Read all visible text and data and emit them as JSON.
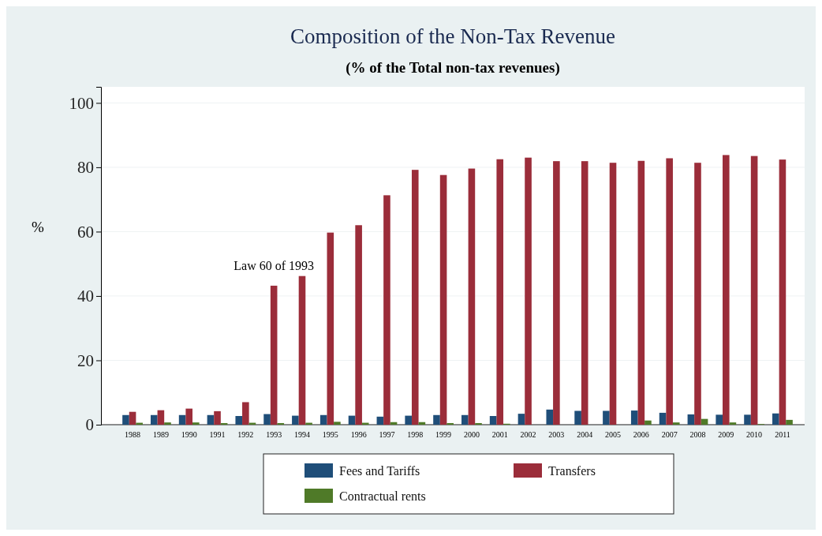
{
  "chart_data": {
    "type": "bar",
    "title": "Composition of the Non-Tax Revenue",
    "subtitle": "(% of the Total non-tax revenues)",
    "ylabel": "%",
    "categories": [
      "1988",
      "1989",
      "1990",
      "1991",
      "1992",
      "1993",
      "1994",
      "1995",
      "1996",
      "1997",
      "1998",
      "1999",
      "2000",
      "2001",
      "2002",
      "2003",
      "2004",
      "2005",
      "2006",
      "2007",
      "2008",
      "2009",
      "2010",
      "2011"
    ],
    "series": [
      {
        "name": "Fees and Tariffs",
        "color": "#1f4e79",
        "values": [
          3,
          3,
          3,
          3,
          2.7,
          3.3,
          2.8,
          3,
          2.8,
          2.5,
          2.8,
          3,
          3,
          2.7,
          3.4,
          4.7,
          4.3,
          4.3,
          4.4,
          3.7,
          3.2,
          3.1,
          3.1,
          3.5
        ]
      },
      {
        "name": "Transfers",
        "color": "#9b2d3a",
        "values": [
          4,
          4.5,
          5,
          4.2,
          7,
          43.2,
          46.2,
          59.7,
          62,
          71.3,
          79.2,
          77.6,
          79.6,
          82.5,
          83,
          81.9,
          81.9,
          81.4,
          82,
          82.8,
          81.4,
          83.8,
          83.5,
          82.4
        ]
      },
      {
        "name": "Contractual rents",
        "color": "#4f7a28",
        "values": [
          0.6,
          0.7,
          0.7,
          0.5,
          0.6,
          0.5,
          0.6,
          0.9,
          0.6,
          0.8,
          0.8,
          0.5,
          0.5,
          0.3,
          0,
          0,
          0,
          0,
          1.3,
          0.7,
          1.8,
          0.7,
          0.2,
          1.5
        ]
      }
    ],
    "ylim": [
      0,
      105
    ],
    "yticks": [
      0,
      20,
      40,
      60,
      80,
      100
    ],
    "grid": "y",
    "legend": "bottom",
    "annotations": [
      "Law 60 of 1993"
    ]
  }
}
